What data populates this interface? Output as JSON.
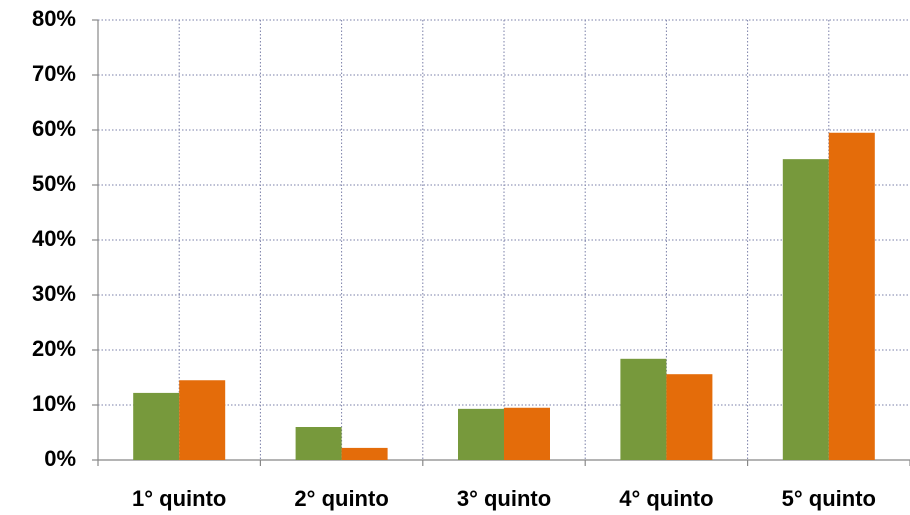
{
  "chart_data": {
    "type": "bar",
    "categories": [
      "1° quinto",
      "2° quinto",
      "3° quinto",
      "4° quinto",
      "5° quinto"
    ],
    "series": [
      {
        "color": "#77993c",
        "values": [
          12.2,
          6.0,
          9.3,
          18.4,
          54.7
        ]
      },
      {
        "color": "#e46c0a",
        "values": [
          14.5,
          2.2,
          9.5,
          15.6,
          59.5
        ]
      }
    ],
    "ylim": [
      0,
      80
    ],
    "yticks": [
      {
        "value": 0,
        "label": "0%"
      },
      {
        "value": 10,
        "label": "10%"
      },
      {
        "value": 20,
        "label": "20%"
      },
      {
        "value": 30,
        "label": "30%"
      },
      {
        "value": 40,
        "label": "40%"
      },
      {
        "value": 50,
        "label": "50%"
      },
      {
        "value": 60,
        "label": "60%"
      },
      {
        "value": 70,
        "label": "70%"
      },
      {
        "value": 80,
        "label": "80%"
      }
    ],
    "grid": true
  }
}
